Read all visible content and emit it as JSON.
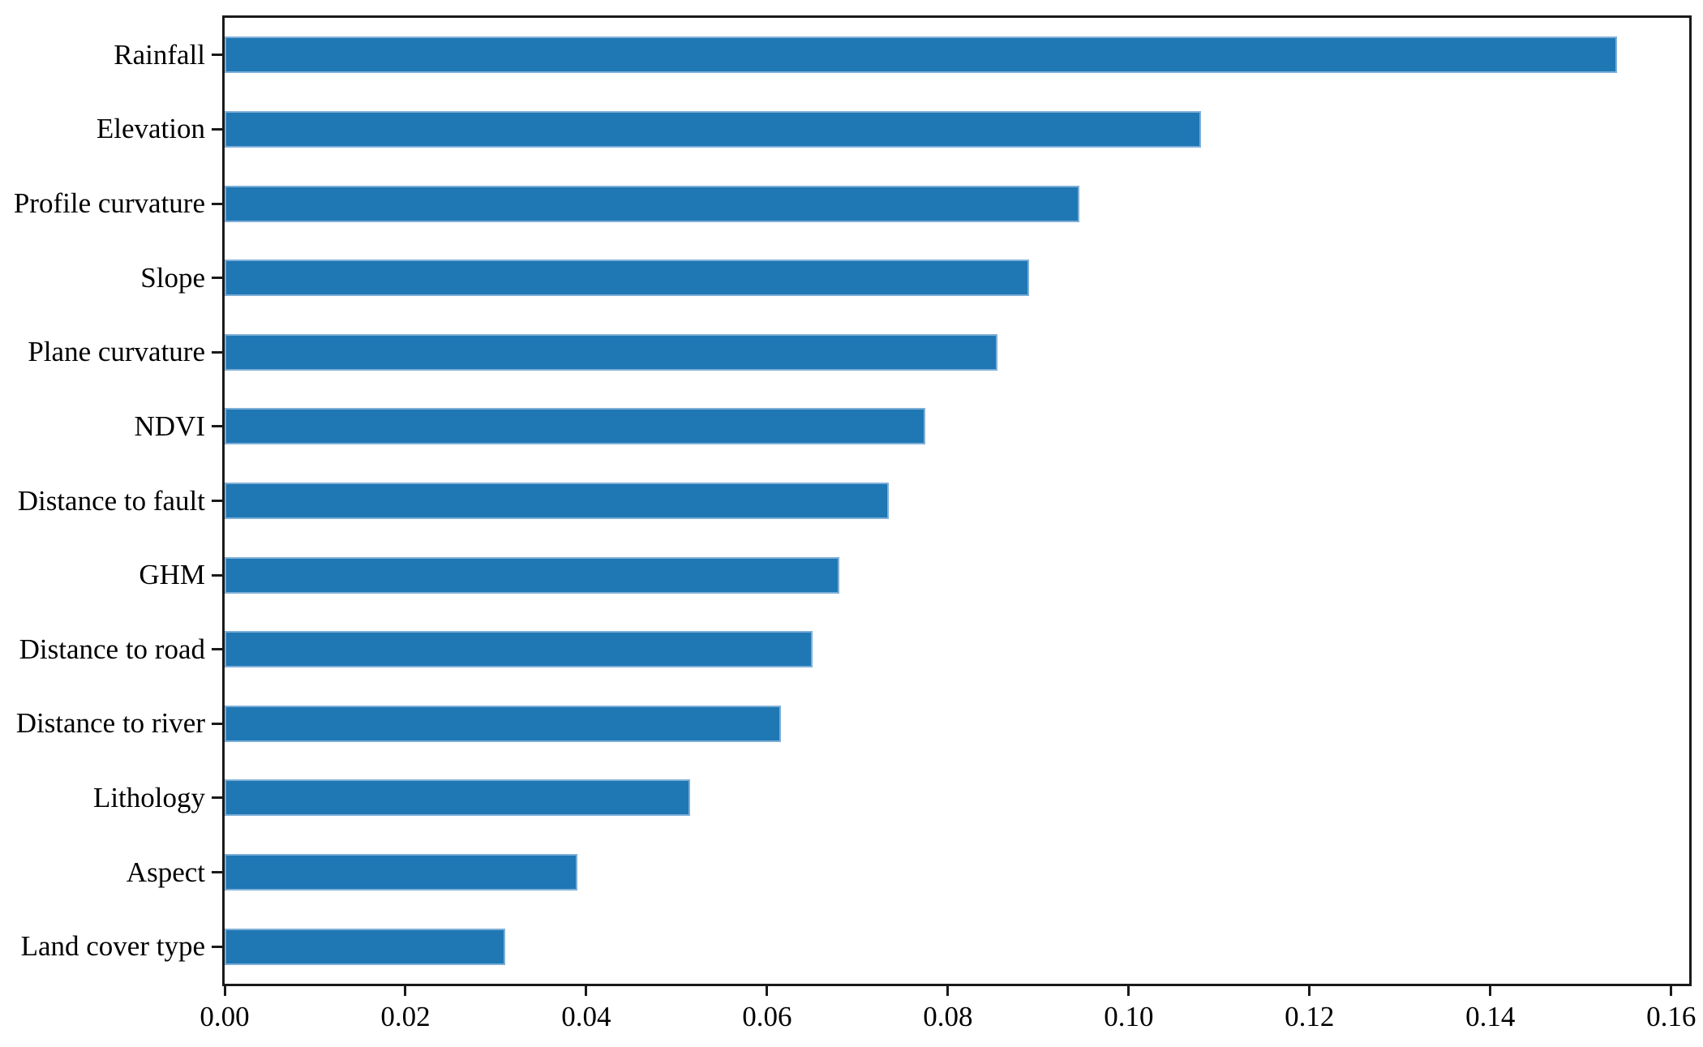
{
  "figure": {
    "background_color": "#ffffff",
    "axis_color": "#1a1a1a",
    "text_color": "#000000"
  },
  "chart_data": {
    "type": "bar",
    "orientation": "horizontal",
    "title": "",
    "xlabel": "",
    "ylabel": "",
    "categories": [
      "Rainfall",
      "Elevation",
      "Profile curvature",
      "Slope",
      "Plane curvature",
      "NDVI",
      "Distance to fault",
      "GHM",
      "Distance to road",
      "Distance to river",
      "Lithology",
      "Aspect",
      "Land cover type"
    ],
    "values": [
      0.154,
      0.108,
      0.0945,
      0.089,
      0.0855,
      0.0775,
      0.0735,
      0.068,
      0.065,
      0.0615,
      0.0515,
      0.039,
      0.031
    ],
    "xlim": [
      0,
      0.162
    ],
    "xticks": [
      0.0,
      0.02,
      0.04,
      0.06,
      0.08,
      0.1,
      0.12,
      0.14,
      0.16
    ],
    "xtick_labels": [
      "0.00",
      "0.02",
      "0.04",
      "0.06",
      "0.08",
      "0.10",
      "0.12",
      "0.14",
      "0.16"
    ],
    "bar_color": "#1f77b4",
    "bar_edge_color": "#7eafd7",
    "grid": false,
    "legend_position": "none"
  }
}
